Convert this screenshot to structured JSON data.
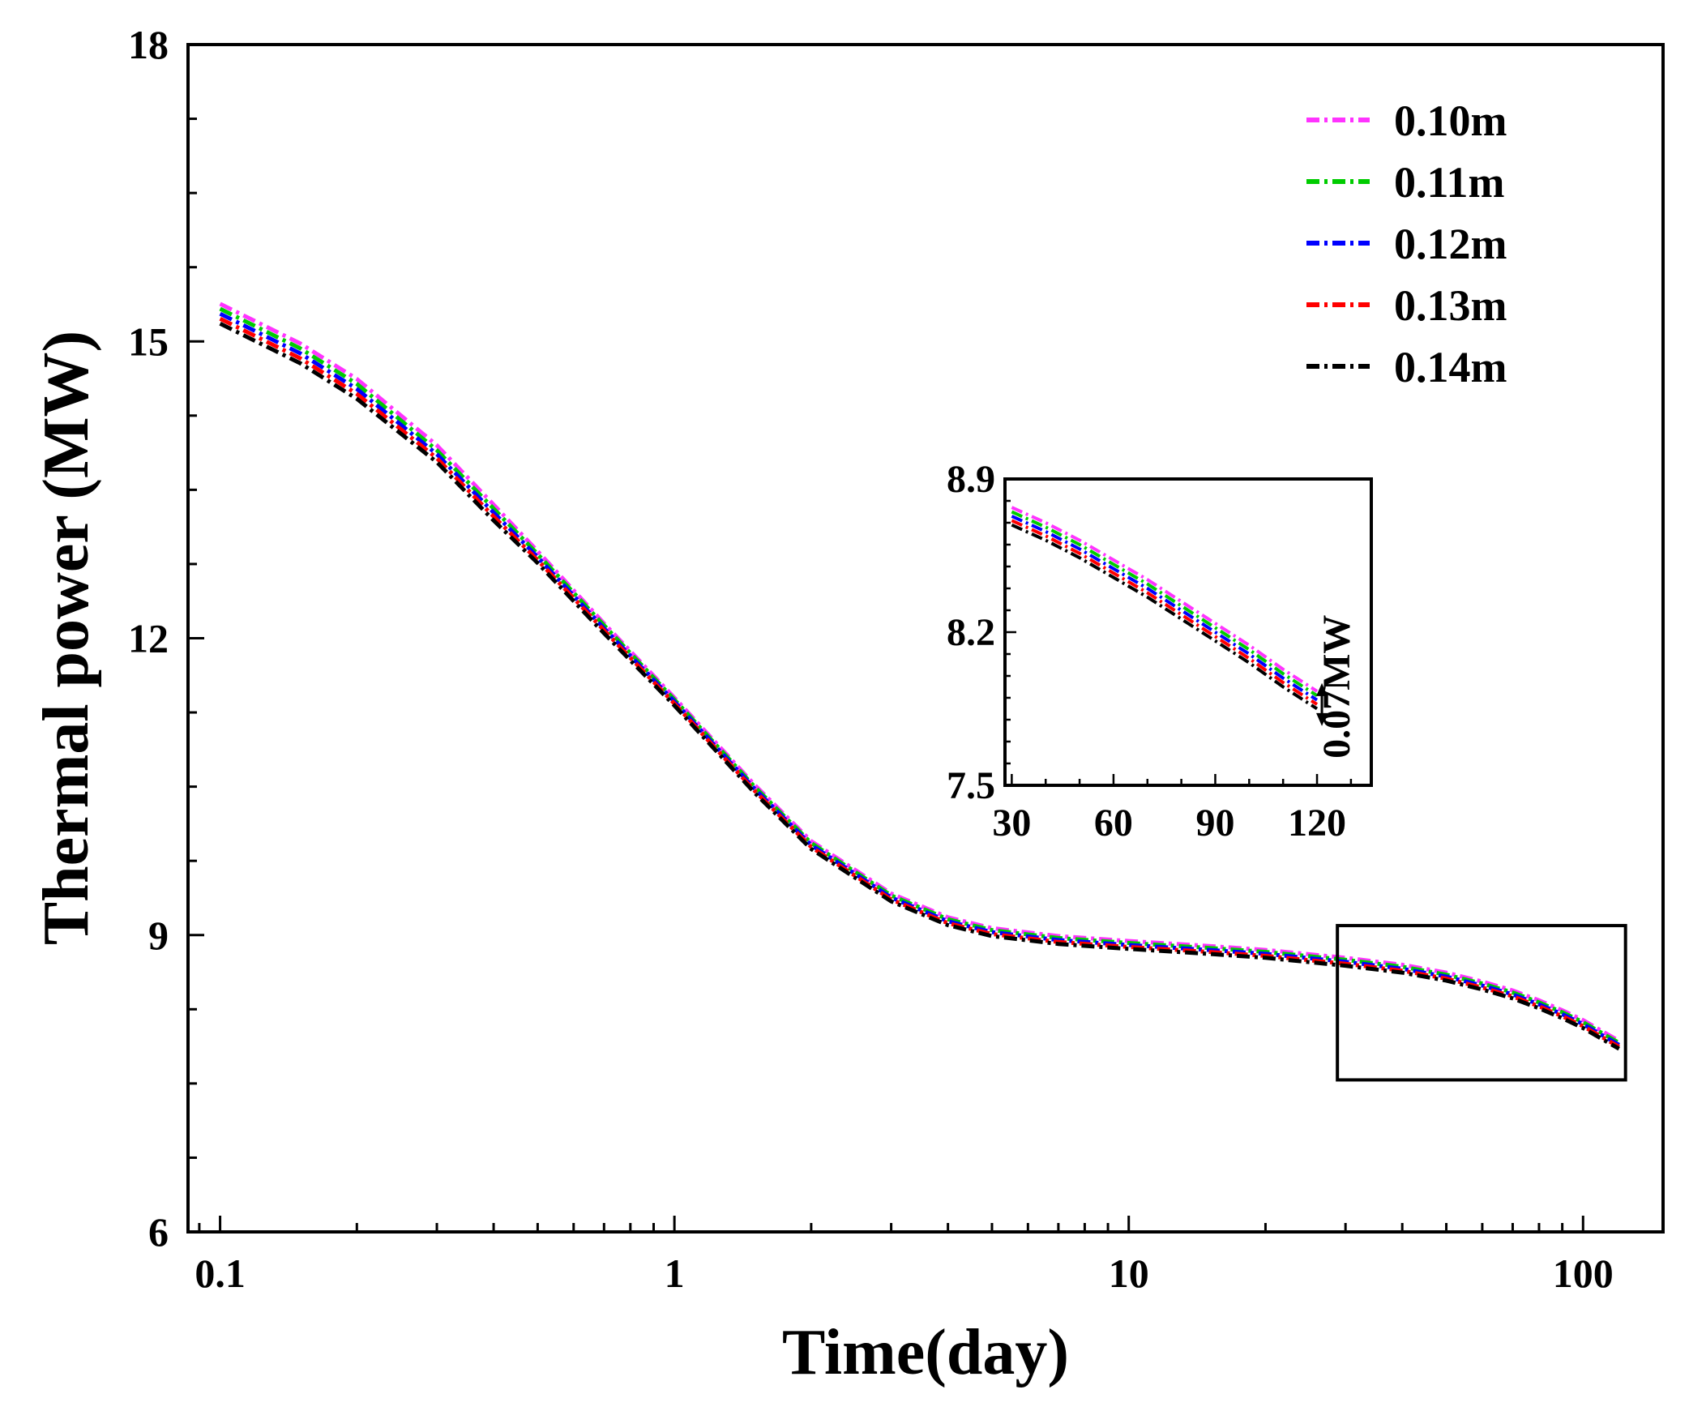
{
  "chart_data": {
    "type": "line",
    "xlabel": "Time(day)",
    "ylabel": "Thermal power (MW)",
    "xscale": "log",
    "xlim": [
      0.085,
      150
    ],
    "ylim": [
      6,
      18
    ],
    "xticks": [
      0.1,
      1,
      10,
      100
    ],
    "xtick_labels": [
      "0.1",
      "1",
      "10",
      "100"
    ],
    "yticks": [
      6,
      9,
      12,
      15,
      18
    ],
    "ytick_labels": [
      "6",
      "9",
      "12",
      "15",
      "18"
    ],
    "legend_position": "top-right",
    "line_style": "dash-dot",
    "series": [
      {
        "name": "0.10m",
        "color": "#ff33ff",
        "x": [
          0.1,
          0.15,
          0.2,
          0.3,
          0.4,
          0.5,
          0.7,
          1,
          1.5,
          2,
          3,
          4,
          5,
          7,
          10,
          15,
          20,
          30,
          40,
          50,
          60,
          70,
          80,
          90,
          100,
          110,
          120
        ],
        "y": [
          15.38,
          14.98,
          14.62,
          13.95,
          13.35,
          12.88,
          12.15,
          11.4,
          10.52,
          9.95,
          9.42,
          9.18,
          9.07,
          8.99,
          8.94,
          8.89,
          8.85,
          8.77,
          8.7,
          8.62,
          8.53,
          8.44,
          8.34,
          8.24,
          8.14,
          8.03,
          7.93
        ]
      },
      {
        "name": "0.11m",
        "color": "#00cc00",
        "x": [
          0.1,
          0.15,
          0.2,
          0.3,
          0.4,
          0.5,
          0.7,
          1,
          1.5,
          2,
          3,
          4,
          5,
          7,
          10,
          15,
          20,
          30,
          40,
          50,
          60,
          70,
          80,
          90,
          100,
          110,
          120
        ],
        "y": [
          15.33,
          14.93,
          14.57,
          13.9,
          13.31,
          12.85,
          12.13,
          11.38,
          10.5,
          9.93,
          9.4,
          9.16,
          9.05,
          8.97,
          8.92,
          8.87,
          8.83,
          8.75,
          8.68,
          8.6,
          8.51,
          8.42,
          8.32,
          8.22,
          8.12,
          8.01,
          7.91
        ]
      },
      {
        "name": "0.12m",
        "color": "#0000ff",
        "x": [
          0.1,
          0.15,
          0.2,
          0.3,
          0.4,
          0.5,
          0.7,
          1,
          1.5,
          2,
          3,
          4,
          5,
          7,
          10,
          15,
          20,
          30,
          40,
          50,
          60,
          70,
          80,
          90,
          100,
          110,
          120
        ],
        "y": [
          15.28,
          14.88,
          14.52,
          13.86,
          13.27,
          12.82,
          12.1,
          11.36,
          10.48,
          9.91,
          9.38,
          9.14,
          9.03,
          8.95,
          8.9,
          8.85,
          8.81,
          8.73,
          8.66,
          8.58,
          8.49,
          8.4,
          8.3,
          8.2,
          8.1,
          7.99,
          7.89
        ]
      },
      {
        "name": "0.13m",
        "color": "#ff0000",
        "x": [
          0.1,
          0.15,
          0.2,
          0.3,
          0.4,
          0.5,
          0.7,
          1,
          1.5,
          2,
          3,
          4,
          5,
          7,
          10,
          15,
          20,
          30,
          40,
          50,
          60,
          70,
          80,
          90,
          100,
          110,
          120
        ],
        "y": [
          15.23,
          14.83,
          14.47,
          13.82,
          13.23,
          12.79,
          12.08,
          11.34,
          10.46,
          9.89,
          9.36,
          9.12,
          9.01,
          8.93,
          8.88,
          8.83,
          8.79,
          8.71,
          8.64,
          8.56,
          8.47,
          8.38,
          8.28,
          8.18,
          8.08,
          7.97,
          7.87
        ]
      },
      {
        "name": "0.14m",
        "color": "#000000",
        "x": [
          0.1,
          0.15,
          0.2,
          0.3,
          0.4,
          0.5,
          0.7,
          1,
          1.5,
          2,
          3,
          4,
          5,
          7,
          10,
          15,
          20,
          30,
          40,
          50,
          60,
          70,
          80,
          90,
          100,
          110,
          120
        ],
        "y": [
          15.18,
          14.78,
          14.42,
          13.78,
          13.19,
          12.76,
          12.05,
          11.32,
          10.44,
          9.87,
          9.34,
          9.1,
          8.99,
          8.91,
          8.86,
          8.81,
          8.77,
          8.69,
          8.62,
          8.54,
          8.45,
          8.36,
          8.26,
          8.16,
          8.06,
          7.95,
          7.85
        ]
      }
    ],
    "zoom_region": {
      "x": [
        30,
        120
      ],
      "y": [
        7.7,
        8.85
      ]
    },
    "inset": {
      "xscale": "linear",
      "xlim": [
        28,
        136
      ],
      "ylim": [
        7.5,
        8.9
      ],
      "xticks": [
        30,
        60,
        90,
        120
      ],
      "xtick_labels": [
        "30",
        "60",
        "90",
        "120"
      ],
      "yticks": [
        7.5,
        8.2,
        8.9
      ],
      "ytick_labels": [
        "7.5",
        "8.2",
        "8.9"
      ],
      "annotation": "0.07MW",
      "annotation_at_x": 120,
      "annotation_range": [
        7.83,
        7.93
      ]
    }
  }
}
